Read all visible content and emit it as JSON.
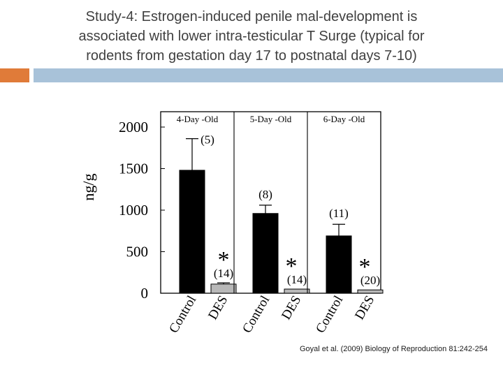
{
  "slide": {
    "title_lines": [
      "Study-4: Estrogen-induced penile mal-development is",
      "associated with lower intra-testicular T Surge (typical for",
      "rodents from gestation day 17 to postnatal days 7-10)"
    ],
    "citation": "Goyal et al. (2009) Biology of Reproduction 81:242-254",
    "colors": {
      "accent_orange": "#e07b39",
      "accent_blue": "#a8c2d9",
      "title_text": "#404040"
    }
  },
  "chart_data": {
    "type": "bar",
    "ylabel": "ng/g",
    "ylim": [
      0,
      2000
    ],
    "yticks": [
      0,
      500,
      1000,
      1500,
      2000
    ],
    "grid": false,
    "categories": [
      "Control",
      "DES"
    ],
    "bar_colors": {
      "Control": "#000000",
      "DES": "#b8b8b8"
    },
    "panels": [
      {
        "title": "4-Day -Old",
        "bars": [
          {
            "category": "Control",
            "value": 1480,
            "error": 380,
            "n_label": "(5)",
            "asterisk": ""
          },
          {
            "category": "DES",
            "value": 110,
            "error": 15,
            "n_label": "(14)",
            "asterisk": "*"
          }
        ]
      },
      {
        "title": "5-Day -Old",
        "bars": [
          {
            "category": "Control",
            "value": 960,
            "error": 100,
            "n_label": "(8)",
            "asterisk": ""
          },
          {
            "category": "DES",
            "value": 50,
            "error": 0,
            "n_label": "(14)",
            "asterisk": "*"
          }
        ]
      },
      {
        "title": "6-Day -Old",
        "bars": [
          {
            "category": "Control",
            "value": 690,
            "error": 140,
            "n_label": "(11)",
            "asterisk": ""
          },
          {
            "category": "DES",
            "value": 40,
            "error": 0,
            "n_label": "(20)",
            "asterisk": "*"
          }
        ]
      }
    ]
  }
}
